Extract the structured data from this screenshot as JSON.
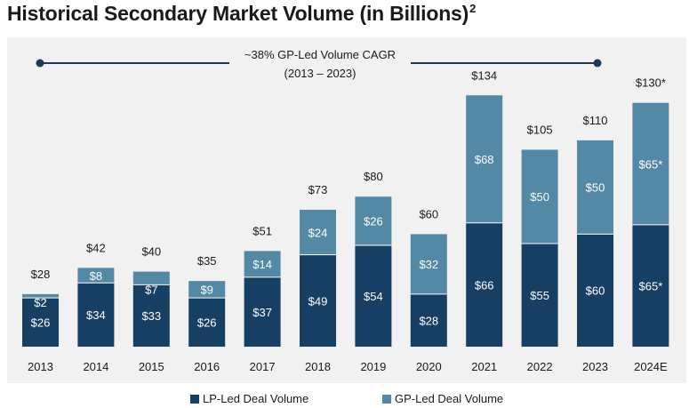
{
  "title": "Historical Secondary Market Volume (in Billions)",
  "title_footnote": "2",
  "annotation": {
    "line1": "~38% GP-Led Volume CAGR",
    "line2": "(2013 – 2023)",
    "line_color": "#1b3a5c"
  },
  "colors": {
    "lp": "#173f63",
    "gp": "#5489a6",
    "panel_bg": "#f1f1f1"
  },
  "legend": [
    {
      "name": "LP-Led Deal Volume",
      "series": "lp"
    },
    {
      "name": "GP-Led Deal Volume",
      "series": "gp"
    }
  ],
  "chart_data": {
    "type": "bar",
    "stacked": true,
    "title": "Historical Secondary Market Volume (in Billions)",
    "categories": [
      "2013",
      "2014",
      "2015",
      "2016",
      "2017",
      "2018",
      "2019",
      "2020",
      "2021",
      "2022",
      "2023",
      "2024E"
    ],
    "series": [
      {
        "name": "LP-Led Deal Volume",
        "key": "lp",
        "values": [
          26,
          34,
          33,
          26,
          37,
          49,
          54,
          28,
          66,
          55,
          60,
          65
        ],
        "labels": [
          "$26",
          "$34",
          "$33",
          "$26",
          "$37",
          "$49",
          "$54",
          "$28",
          "$66",
          "$55",
          "$60",
          "$65*"
        ]
      },
      {
        "name": "GP-Led Deal Volume",
        "key": "gp",
        "values": [
          2,
          8,
          7,
          9,
          14,
          24,
          26,
          32,
          68,
          50,
          50,
          65
        ],
        "labels": [
          "$2",
          "$8",
          "$7",
          "$9",
          "$14",
          "$24",
          "$26",
          "$32",
          "$68",
          "$50",
          "$50",
          "$65*"
        ]
      }
    ],
    "totals": [
      28,
      42,
      40,
      35,
      51,
      73,
      80,
      60,
      134,
      105,
      110,
      130
    ],
    "total_labels": [
      "$28",
      "$42",
      "$40",
      "$35",
      "$51",
      "$73",
      "$80",
      "$60",
      "$134",
      "$105",
      "$110",
      "$130*"
    ],
    "ylim": [
      0,
      140
    ],
    "grid": false,
    "legend_position": "bottom-center"
  }
}
